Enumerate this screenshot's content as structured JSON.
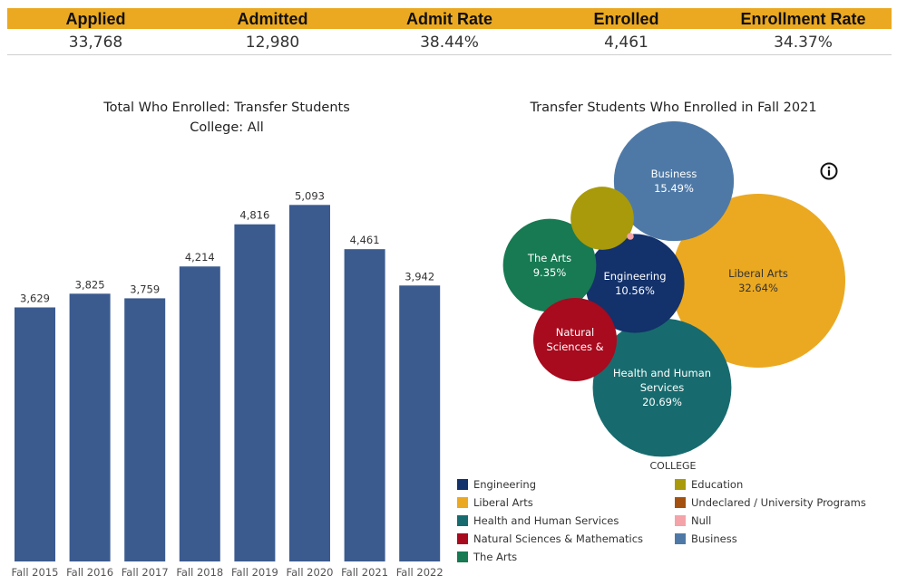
{
  "kpis": [
    {
      "label": "Applied",
      "value": "33,768"
    },
    {
      "label": "Admitted",
      "value": "12,980"
    },
    {
      "label": "Admit Rate",
      "value": "38.44%"
    },
    {
      "label": "Enrolled",
      "value": "4,461"
    },
    {
      "label": "Enrollment Rate",
      "value": "34.37%"
    }
  ],
  "bar_title_line1": "Total Who Enrolled: Transfer Students",
  "bar_title_line2": "College: All",
  "bubble_title": "Transfer Students Who Enrolled  in Fall 2021",
  "legend_title": "COLLEGE",
  "colors": {
    "bar": "#3B5B8F",
    "kpi_header": "#EBA921"
  },
  "chart_data": [
    {
      "type": "bar",
      "title": "Total Who Enrolled: Transfer Students",
      "subtitle": "College: All",
      "categories": [
        "Fall 2015",
        "Fall 2016",
        "Fall 2017",
        "Fall 2018",
        "Fall 2019",
        "Fall 2020",
        "Fall 2021",
        "Fall 2022"
      ],
      "values": [
        3629,
        3825,
        3759,
        4214,
        4816,
        5093,
        4461,
        3942
      ],
      "value_labels": [
        "3,629",
        "3,825",
        "3,759",
        "4,214",
        "4,816",
        "5,093",
        "4,461",
        "3,942"
      ],
      "ylim": [
        0,
        6080
      ],
      "grid": false
    },
    {
      "type": "bubble",
      "title": "Transfer Students Who Enrolled  in Fall 2021",
      "series": [
        {
          "name": "Liberal Arts",
          "label": "Liberal Arts",
          "pct": "32.64%",
          "value": 32.64,
          "color": "#EBA921",
          "text_color": "#333333"
        },
        {
          "name": "Health and Human Services",
          "label": "Health and Human Services",
          "pct": "20.69%",
          "value": 20.69,
          "color": "#176B6E",
          "text_color": "#ffffff"
        },
        {
          "name": "Business",
          "label": "Business",
          "pct": "15.49%",
          "value": 15.49,
          "color": "#4E79A7",
          "text_color": "#ffffff"
        },
        {
          "name": "Engineering",
          "label": "Engineering",
          "pct": "10.56%",
          "value": 10.56,
          "color": "#13316B",
          "text_color": "#ffffff"
        },
        {
          "name": "The Arts",
          "label": "The Arts",
          "pct": "9.35%",
          "value": 9.35,
          "color": "#177A52",
          "text_color": "#ffffff"
        },
        {
          "name": "Natural Sciences & Mathematics",
          "label": "Natural Sciences &",
          "pct": "",
          "value": 7.5,
          "color": "#A80A1E",
          "text_color": "#ffffff"
        },
        {
          "name": "Education",
          "label": "",
          "pct": "",
          "value": 4.3,
          "color": "#A89A0A",
          "text_color": "#ffffff"
        },
        {
          "name": "Null",
          "label": "",
          "pct": "",
          "value": 0.05,
          "color": "#F4A3A8",
          "text_color": "#ffffff"
        }
      ]
    }
  ],
  "legend": [
    {
      "label": "Engineering",
      "color": "#13316B"
    },
    {
      "label": "Liberal Arts",
      "color": "#EBA921"
    },
    {
      "label": "Health and Human Services",
      "color": "#176B6E"
    },
    {
      "label": "Natural Sciences & Mathematics",
      "color": "#A80A1E"
    },
    {
      "label": "The Arts",
      "color": "#177A52"
    },
    {
      "label": "Education",
      "color": "#A89A0A"
    },
    {
      "label": "Undeclared / University Programs",
      "color": "#A4510F"
    },
    {
      "label": "Null",
      "color": "#F4A3A8"
    },
    {
      "label": "Business",
      "color": "#4E79A7"
    }
  ],
  "icons": {
    "info": "info-circle-icon"
  }
}
